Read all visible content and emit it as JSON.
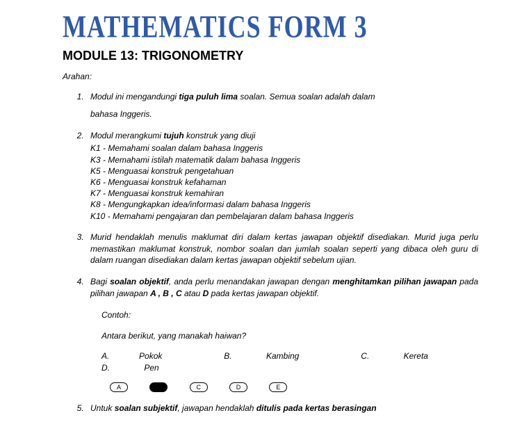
{
  "banner": "MATHEMATICS FORM 3",
  "module_title": "MODULE 13: TRIGONOMETRY",
  "arahan": "Arahan:",
  "item1": {
    "pre": "Modul ini mengandungi ",
    "bold": "tiga puluh lima",
    "post": " soalan. Semua soalan adalah dalam",
    "line2": "bahasa Inggeris."
  },
  "item2": {
    "pre": "Modul merangkumi ",
    "bold": "tujuh",
    "post": " konstruk yang diuji",
    "k1": "K1 - Memahami soalan dalam bahasa Inggeris",
    "k3": "K3 - Memahami istilah matematik dalam bahasa Inggeris",
    "k5": "K5 - Menguasai konstruk pengetahuan",
    "k6": "K6 - Menguasai konstruk kefahaman",
    "k7": "K7 - Menguasai konstruk kemahiran",
    "k8": "K8 - Mengungkapkan idea/informasi dalam bahasa Inggeris",
    "k10": " K10 - Memahami pengajaran dan pembelajaran dalam bahasa Inggeris"
  },
  "item3": "Murid hendaklah menulis maklumat diri dalam kertas jawapan objektif disediakan. Murid juga perlu memastikan maklumat konstruk, nombor soalan dan jumlah soalan seperti yang dibaca oleh guru di dalam ruangan disediakan dalam kertas jawapan objektif sebelum ujian.",
  "item4": {
    "p1": "Bagi ",
    "b1": "soalan objektif",
    "p2": ", anda perlu menandakan jawapan dengan ",
    "b2": "menghitamkan pilihan jawapan",
    "p3": " pada pilihan jawapan ",
    "b3": "A , B , C",
    "p4": " atau ",
    "b4": "D",
    "p5": " pada kertas jawapan objektif.",
    "contoh": "Contoh:",
    "question": "Antara berikut, yang manakah haiwan?",
    "choices": {
      "a_lbl": "A.",
      "a_txt": "Pokok",
      "b_lbl": "B.",
      "b_txt": "Kambing",
      "c_lbl": "C.",
      "c_txt": "Kereta",
      "d_lbl": "D.",
      "d_txt": "Pen"
    },
    "bubbles": {
      "a": "A",
      "c": "C",
      "d": "D",
      "e": "E"
    }
  },
  "item5": {
    "p1": "Untuk ",
    "b1": "soalan subjektif",
    "p2": ", jawapan hendaklah ",
    "b2": "ditulis pada kertas berasingan"
  },
  "colors": {
    "banner": "#2e5aa8",
    "text": "#000000",
    "background": "#ffffff"
  }
}
